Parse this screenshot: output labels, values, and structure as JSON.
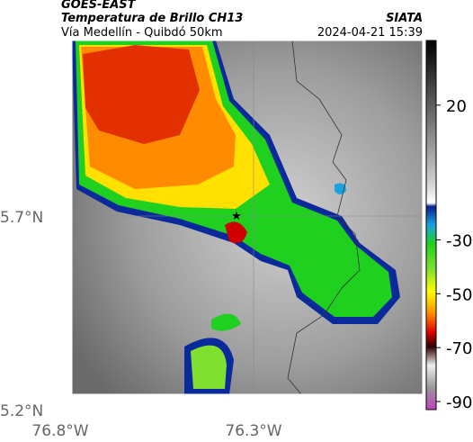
{
  "header": {
    "source": "GOES-EAST",
    "title": "Temperatura de Brillo CH13",
    "subtitle": "Vía Medellín - Quibdó 50km",
    "agency": "SIATA",
    "datetime": "2024-04-21 15:39"
  },
  "axes": {
    "y_labels": [
      "5.7°N",
      "5.2°N"
    ],
    "x_labels": [
      "76.8°W",
      "76.3°W"
    ]
  },
  "colorbar": {
    "lim": [
      -93,
      44
    ],
    "ticks": [
      20,
      -30,
      -50,
      -70,
      -90
    ]
  }
}
